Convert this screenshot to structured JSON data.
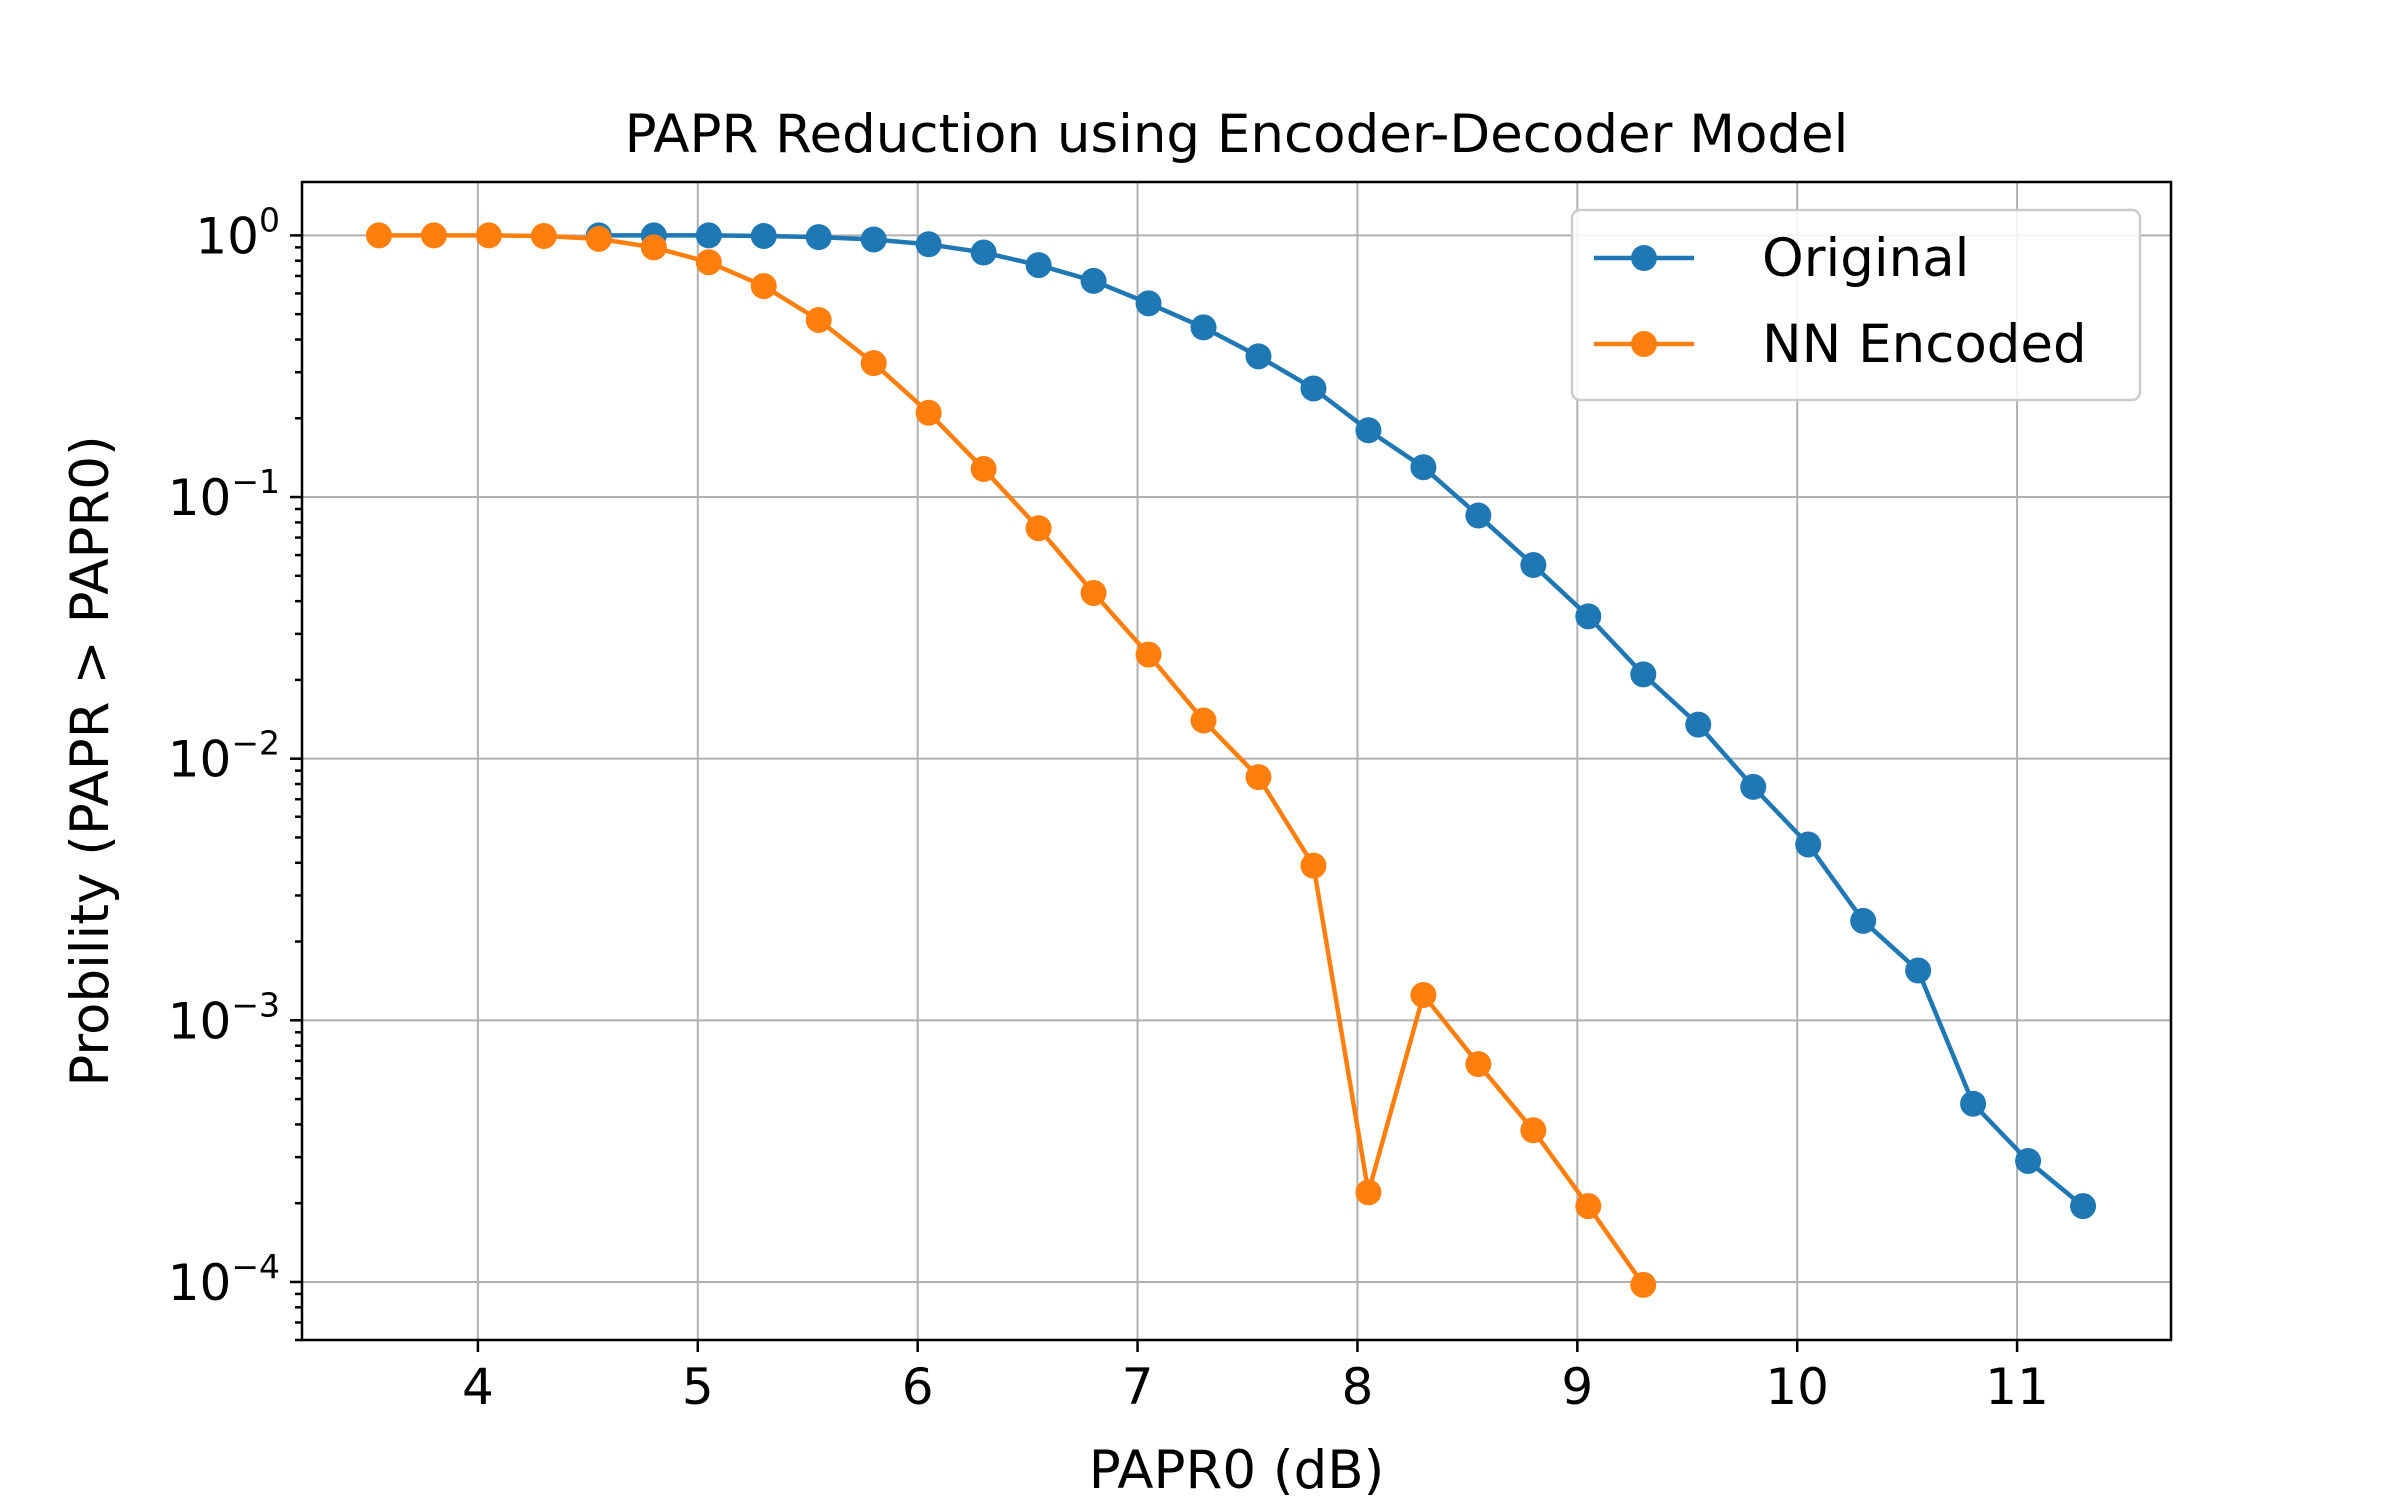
{
  "chart_data": {
    "type": "line",
    "title": "PAPR Reduction using Encoder-Decoder Model",
    "xlabel": "PAPR0 (dB)",
    "ylabel": "Probility (PAPR > PAPR0)",
    "xlim": [
      3.2,
      11.7
    ],
    "ylim": [
      6e-05,
      1.6
    ],
    "yscale": "log",
    "grid": true,
    "legend_position": "top-right",
    "x_ticks": [
      4,
      5,
      6,
      7,
      8,
      9,
      10,
      11
    ],
    "y_ticks": [
      {
        "value": 1,
        "base": "10",
        "exp": "0"
      },
      {
        "value": 0.1,
        "base": "10",
        "exp": "−1"
      },
      {
        "value": 0.01,
        "base": "10",
        "exp": "−2"
      },
      {
        "value": 0.001,
        "base": "10",
        "exp": "−3"
      },
      {
        "value": 0.0001,
        "base": "10",
        "exp": "−4"
      }
    ],
    "series": [
      {
        "name": "Original",
        "color": "#1f77b4",
        "x": [
          4.55,
          4.8,
          5.05,
          5.3,
          5.55,
          5.8,
          6.05,
          6.3,
          6.55,
          6.8,
          7.05,
          7.3,
          7.55,
          7.8,
          8.05,
          8.3,
          8.55,
          8.8,
          9.05,
          9.3,
          9.55,
          9.8,
          10.05,
          10.3,
          10.55,
          10.8,
          11.05,
          11.3
        ],
        "y": [
          1.0,
          1.0,
          1.0,
          0.995,
          0.985,
          0.965,
          0.925,
          0.86,
          0.77,
          0.67,
          0.55,
          0.445,
          0.345,
          0.26,
          0.18,
          0.13,
          0.085,
          0.055,
          0.035,
          0.021,
          0.0135,
          0.0078,
          0.0047,
          0.0024,
          0.00155,
          0.00048,
          0.00029,
          0.000195
        ]
      },
      {
        "name": "NN Encoded",
        "color": "#ff7f0e",
        "x": [
          3.55,
          3.8,
          4.05,
          4.3,
          4.55,
          4.8,
          5.05,
          5.3,
          5.55,
          5.8,
          6.05,
          6.3,
          6.55,
          6.8,
          7.05,
          7.3,
          7.55,
          7.8,
          8.05,
          8.3,
          8.55,
          8.8,
          9.05,
          9.3
        ],
        "y": [
          1.0,
          1.0,
          1.0,
          0.995,
          0.97,
          0.9,
          0.79,
          0.64,
          0.475,
          0.325,
          0.21,
          0.128,
          0.076,
          0.043,
          0.025,
          0.014,
          0.0085,
          0.0039,
          0.00022,
          0.00125,
          0.00068,
          0.00038,
          0.000195,
          9.75e-05
        ]
      }
    ]
  }
}
